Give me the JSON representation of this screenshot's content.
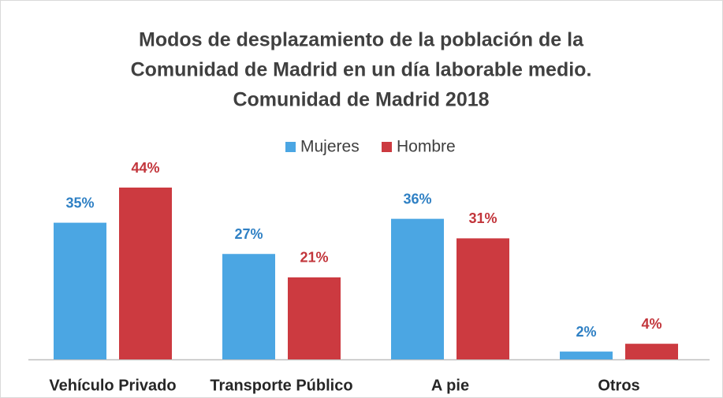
{
  "chart_data": {
    "type": "bar",
    "title": [
      "Modos de desplazamiento de la población de la",
      "Comunidad de Madrid en un día laborable medio.",
      "Comunidad de Madrid 2018"
    ],
    "categories": [
      "Vehículo Privado",
      "Transporte Público",
      "A pie",
      "Otros"
    ],
    "series": [
      {
        "name": "Mujeres",
        "color": "#4ba6e3",
        "label_color": "#2f80c4",
        "values": [
          35,
          27,
          36,
          2
        ],
        "value_labels": [
          "35%",
          "27%",
          "36%",
          "2%"
        ]
      },
      {
        "name": "Hombre",
        "color": "#cc3a40",
        "label_color": "#c2353b",
        "values": [
          44,
          21,
          31,
          4
        ],
        "value_labels": [
          "44%",
          "21%",
          "31%",
          "4%"
        ]
      }
    ],
    "legend": "top"
  }
}
